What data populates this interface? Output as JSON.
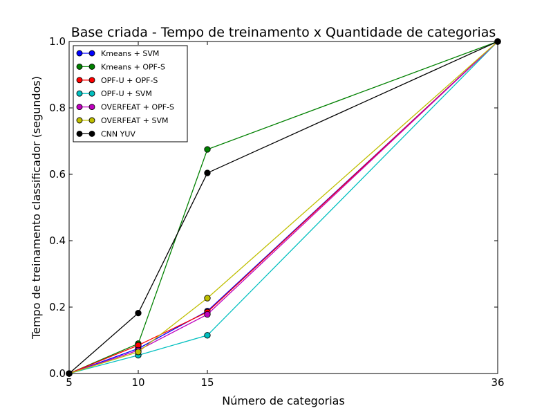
{
  "chart_data": {
    "type": "line",
    "title": "Base criada - Tempo de treinamento x Quantidade de categorias",
    "xlabel": "Número de categorias",
    "ylabel": "Tempo de treinamento classificador (segundos)",
    "x": [
      5,
      10,
      15,
      36
    ],
    "xticks": [
      "5",
      "10",
      "15",
      "36"
    ],
    "xlim": [
      5,
      36
    ],
    "ylim": [
      0,
      1
    ],
    "yticks": [
      "0.0",
      "0.2",
      "0.4",
      "0.6",
      "0.8",
      "1.0"
    ],
    "legend_position": "top-left",
    "grid": false,
    "series": [
      {
        "name": "Kmeans + SVM",
        "color": "#0000ff",
        "values": [
          0.0,
          0.075,
          0.188,
          1.0
        ]
      },
      {
        "name": "Kmeans + OPF-S",
        "color": "#008000",
        "values": [
          0.0,
          0.09,
          0.675,
          1.0
        ]
      },
      {
        "name": "OPF-U + OPF-S",
        "color": "#ff0000",
        "values": [
          0.0,
          0.085,
          0.185,
          1.0
        ]
      },
      {
        "name": "OPF-U + SVM",
        "color": "#00bfbf",
        "values": [
          0.0,
          0.055,
          0.115,
          1.0
        ]
      },
      {
        "name": "OVERFEAT + OPF-S",
        "color": "#bf00bf",
        "values": [
          0.0,
          0.07,
          0.178,
          1.0
        ]
      },
      {
        "name": "OVERFEAT + SVM",
        "color": "#bfbf00",
        "values": [
          0.0,
          0.065,
          0.227,
          1.0
        ]
      },
      {
        "name": "CNN YUV",
        "color": "#000000",
        "values": [
          0.0,
          0.182,
          0.604,
          1.0
        ]
      }
    ]
  }
}
